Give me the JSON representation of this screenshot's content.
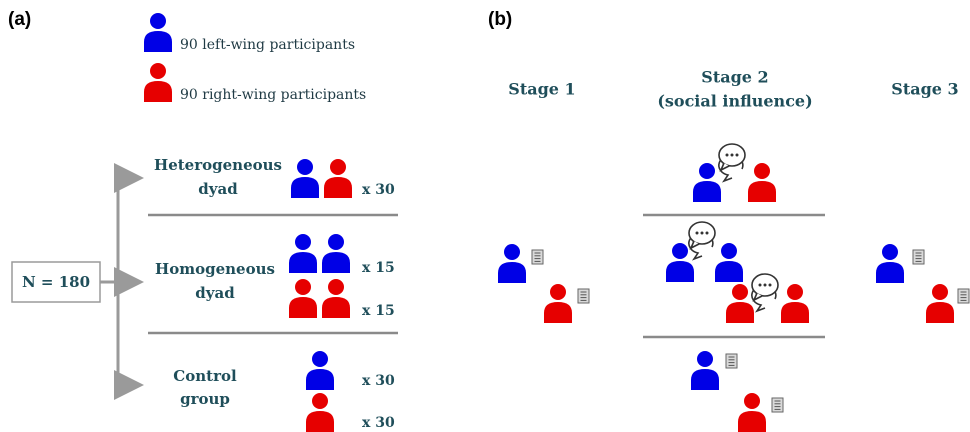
{
  "panel_a": {
    "label": "(a)",
    "legend": [
      "90 left-wing participants",
      "90 right-wing participants"
    ],
    "total": "N = 180",
    "groups": [
      {
        "name": [
          "Heterogeneous",
          "dyad"
        ],
        "counts": [
          "x 30"
        ]
      },
      {
        "name": [
          "Homogeneous",
          "dyad"
        ],
        "counts": [
          "x 15",
          "x 15"
        ]
      },
      {
        "name": [
          "Control",
          "group"
        ],
        "counts": [
          "x 30",
          "x 30"
        ]
      }
    ]
  },
  "panel_b": {
    "label": "(b)",
    "stages": [
      [
        "Stage 1"
      ],
      [
        "Stage 2",
        "(social influence)"
      ],
      [
        "Stage 3"
      ]
    ]
  }
}
